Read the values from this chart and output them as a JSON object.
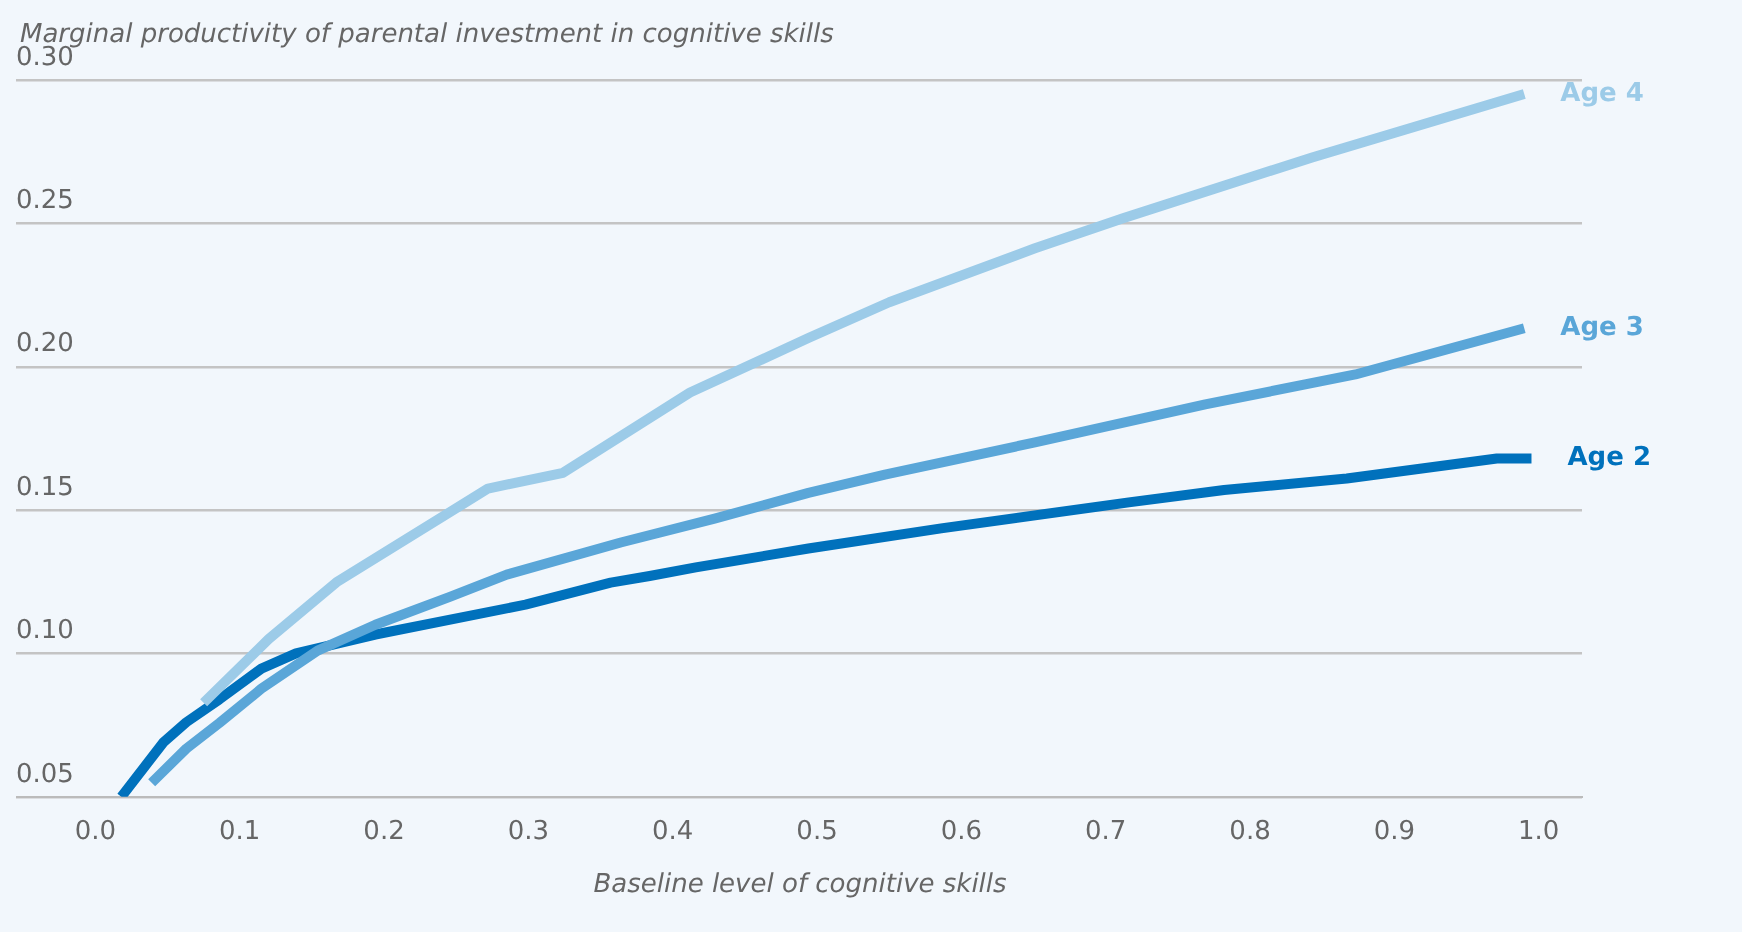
{
  "chart_data": {
    "type": "line",
    "ylabel": "Marginal productivity of parental investment in cognitive skills",
    "xlabel": "Baseline level of cognitive skills",
    "xlim": [
      -0.055,
      1.03
    ],
    "ylim": [
      0.05,
      0.3
    ],
    "xticks": [
      {
        "value": 0,
        "label": "0.0"
      },
      0.1,
      0.2,
      0.3,
      0.4,
      0.5,
      0.6,
      0.7,
      0.8,
      0.9,
      {
        "value": 1,
        "label": "1.0"
      }
    ],
    "yticks": [
      0.05,
      {
        "value": 0.1,
        "label": "0.10"
      },
      0.15,
      {
        "value": 0.2,
        "label": "0.20"
      },
      0.25,
      {
        "value": 0.3,
        "label": "0.30"
      }
    ],
    "grid": "y",
    "legend": false,
    "marker": "none",
    "line_style": "solid",
    "series": [
      {
        "name": "Age 4",
        "color": "#9ccbe8",
        "x": [
          0.075,
          0.12,
          0.167,
          0.272,
          0.324,
          0.412,
          0.494,
          0.55,
          0.651,
          0.712,
          0.843,
          0.99
        ],
        "values": [
          0.0828,
          0.105,
          0.1248,
          0.1575,
          0.163,
          0.191,
          0.21,
          0.2225,
          0.2413,
          0.2518,
          0.273,
          0.2951
        ]
      },
      {
        "name": "Age 3",
        "color": "#5aa6d8",
        "x": [
          0.039,
          0.063,
          0.086,
          0.115,
          0.154,
          0.194,
          0.246,
          0.285,
          0.364,
          0.429,
          0.494,
          0.547,
          0.651,
          0.769,
          0.873,
          0.99
        ],
        "values": [
          0.0549,
          0.0668,
          0.0758,
          0.0877,
          0.101,
          0.11,
          0.1198,
          0.1275,
          0.1387,
          0.147,
          0.156,
          0.1624,
          0.1736,
          0.1869,
          0.1973,
          0.2134
        ]
      },
      {
        "name": "Age 2",
        "color": "#0071bc",
        "x": [
          0.018,
          0.047,
          0.063,
          0.086,
          0.115,
          0.139,
          0.194,
          0.298,
          0.357,
          0.384,
          0.416,
          0.494,
          0.586,
          0.716,
          0.782,
          0.867,
          0.971,
          0.995
        ],
        "values": [
          0.05,
          0.0689,
          0.076,
          0.084,
          0.0947,
          0.1,
          0.1066,
          0.117,
          0.1247,
          0.127,
          0.13,
          0.1366,
          0.1436,
          0.1527,
          0.157,
          0.161,
          0.168,
          0.168
        ]
      }
    ]
  }
}
